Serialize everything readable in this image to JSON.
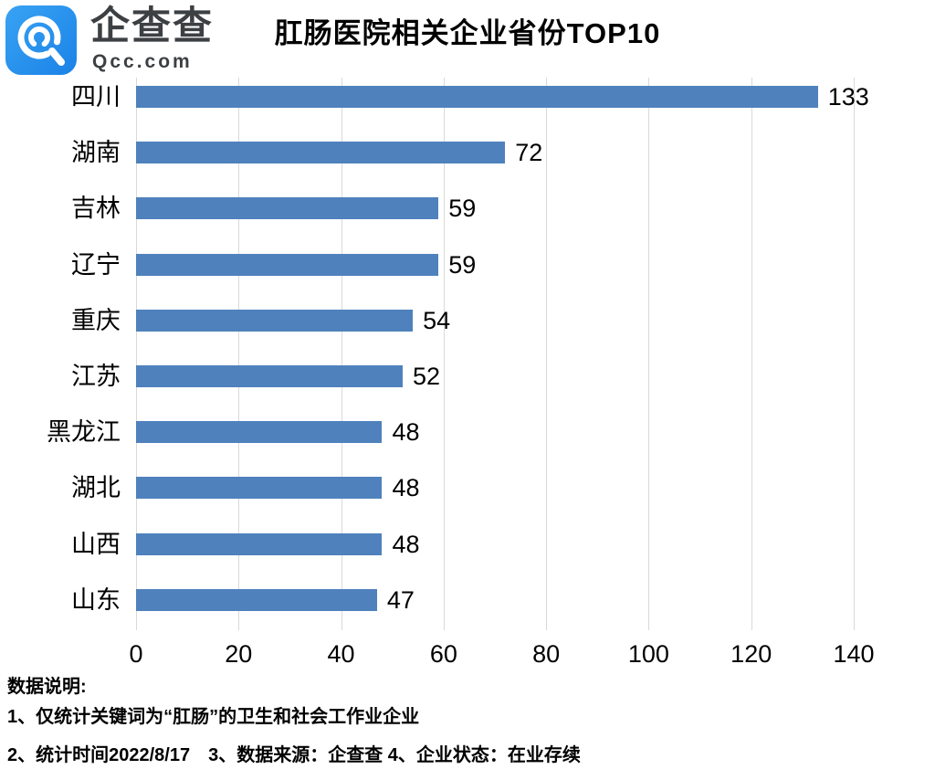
{
  "logo": {
    "name": "企查查",
    "domain": "Qcc.com",
    "icon": "qcc-q-magnifier-icon",
    "brand_color": "#2191ee"
  },
  "chart_data": {
    "type": "bar",
    "orientation": "horizontal",
    "title": "肛肠医院相关企业省份TOP10",
    "categories": [
      "四川",
      "湖南",
      "吉林",
      "辽宁",
      "重庆",
      "江苏",
      "黑龙江",
      "湖北",
      "山西",
      "山东"
    ],
    "values": [
      133,
      72,
      59,
      59,
      54,
      52,
      48,
      48,
      48,
      47
    ],
    "xlim": [
      0,
      140
    ],
    "xticks": [
      0,
      20,
      40,
      60,
      80,
      100,
      120,
      140
    ],
    "grid": "vertical-gridlines-on",
    "legend": "none",
    "bar_color": "#4f81bd",
    "gridline_color": "#d9d9d9",
    "value_labels": "outside-end"
  },
  "footer": {
    "heading": "数据说明:",
    "notes": [
      "1、仅统计关键词为“肛肠”的卫生和社会工作业企业",
      "2、统计时间2022/8/17　3、数据来源：企查查 4、企业状态：在业存续"
    ]
  }
}
